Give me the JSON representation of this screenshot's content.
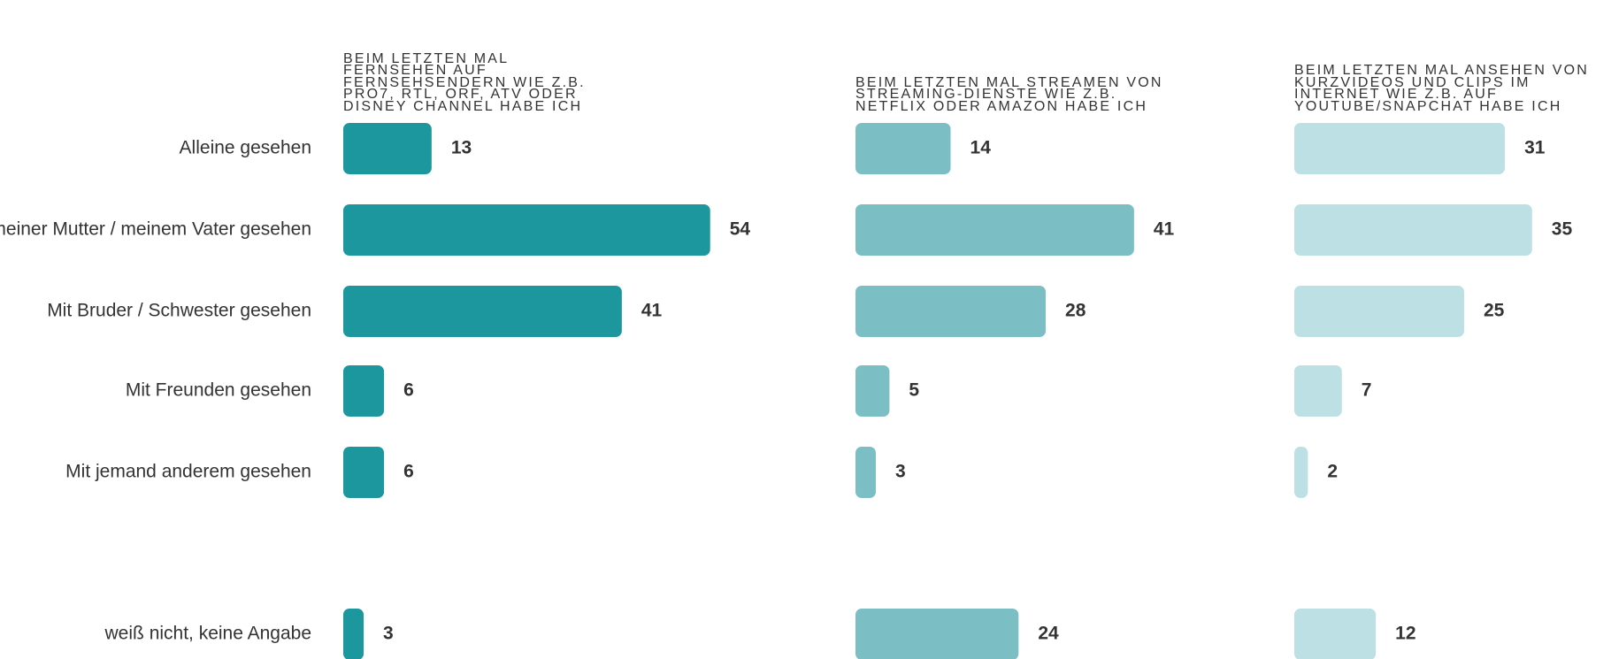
{
  "chart_data": {
    "type": "bar",
    "categories": [
      "Alleine gesehen",
      "Mit meiner Mutter / meinem Vater gesehen",
      "Mit Bruder / Schwester gesehen",
      "Mit Freunden gesehen",
      "Mit jemand anderem gesehen",
      "weiß nicht, keine Angabe"
    ],
    "series": [
      {
        "name": "BEIM LETZTEN MAL FERNSEHEN AUF FERNSEHSENDERN WIE Z.B. PRO7, RTL, ORF, ATV ODER DISNEY CHANNEL HABE ICH",
        "color": "#1c979d",
        "values": [
          13,
          54,
          41,
          6,
          6,
          3
        ]
      },
      {
        "name": "BEIM LETZTEN MAL STREAMEN VON STREAMING-DIENSTE WIE Z.B. NETFLIX ODER AMAZON HABE ICH",
        "color": "#7bbfc5",
        "values": [
          14,
          41,
          28,
          5,
          3,
          24
        ]
      },
      {
        "name": "BEIM LETZTEN MAL ANSEHEN VON KURZVIDEOS UND CLIPS IM INTERNET WIE Z.B. AUF YOUTUBE/SNAPCHAT HABE ICH",
        "color": "#bde0e4",
        "values": [
          31,
          35,
          25,
          7,
          2,
          12
        ]
      }
    ]
  }
}
